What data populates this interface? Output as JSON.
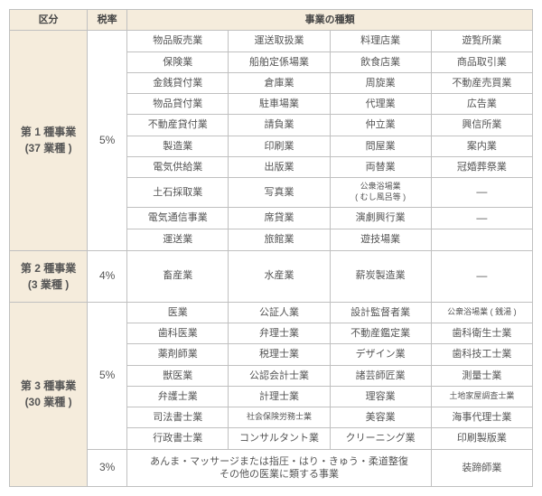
{
  "colors": {
    "header_bg": "#f5ecdc",
    "border": "#c0c0c0",
    "text": "#555555",
    "bg": "#ffffff"
  },
  "headers": {
    "category": "区分",
    "rate": "税率",
    "type": "事業の種類"
  },
  "cat1": {
    "name": "第 1 種事業",
    "count": "(37 業種 )",
    "rate": "5%"
  },
  "cat2": {
    "name": "第 2 種事業",
    "count": "(3 業種 )",
    "rate": "4%"
  },
  "cat3": {
    "name": "第 3 種事業",
    "count": "(30 業種 )",
    "rate_a": "5%",
    "rate_b": "3%"
  },
  "t1": {
    "r0": {
      "c0": "物品販売業",
      "c1": "運送取扱業",
      "c2": "料理店業",
      "c3": "遊覧所業"
    },
    "r1": {
      "c0": "保険業",
      "c1": "船舶定係場業",
      "c2": "飲食店業",
      "c3": "商品取引業"
    },
    "r2": {
      "c0": "金銭貸付業",
      "c1": "倉庫業",
      "c2": "周旋業",
      "c3": "不動産売買業"
    },
    "r3": {
      "c0": "物品貸付業",
      "c1": "駐車場業",
      "c2": "代理業",
      "c3": "広告業"
    },
    "r4": {
      "c0": "不動産貸付業",
      "c1": "請負業",
      "c2": "仲立業",
      "c3": "興信所業"
    },
    "r5": {
      "c0": "製造業",
      "c1": "印刷業",
      "c2": "問屋業",
      "c3": "案内業"
    },
    "r6": {
      "c0": "電気供給業",
      "c1": "出版業",
      "c2": "両替業",
      "c3": "冠婚葬祭業"
    },
    "r7": {
      "c0": "土石採取業",
      "c1": "写真業",
      "c2a": "公衆浴場業",
      "c2b": "( むし風呂等 )",
      "c3": "―"
    },
    "r8": {
      "c0": "電気通信事業",
      "c1": "席貸業",
      "c2": "演劇興行業",
      "c3": "―"
    },
    "r9": {
      "c0": "運送業",
      "c1": "旅館業",
      "c2": "遊技場業"
    }
  },
  "t2": {
    "r0": {
      "c0": "畜産業",
      "c1": "水産業",
      "c2": "薪炭製造業",
      "c3": "―"
    }
  },
  "t3": {
    "r0": {
      "c0": "医業",
      "c1": "公証人業",
      "c2": "設計監督者業",
      "c3": "公衆浴場業 ( 銭湯 )"
    },
    "r1": {
      "c0": "歯科医業",
      "c1": "弁理士業",
      "c2": "不動産鑑定業",
      "c3": "歯科衛生士業"
    },
    "r2": {
      "c0": "薬剤師業",
      "c1": "税理士業",
      "c2": "デザイン業",
      "c3": "歯科技工士業"
    },
    "r3": {
      "c0": "獣医業",
      "c1": "公認会計士業",
      "c2": "諸芸師匠業",
      "c3": "測量士業"
    },
    "r4": {
      "c0": "弁護士業",
      "c1": "計理士業",
      "c2": "理容業",
      "c3": "土地家屋調査士業"
    },
    "r5": {
      "c0": "司法書士業",
      "c1": "社会保険労務士業",
      "c2": "美容業",
      "c3": "海事代理士業"
    },
    "r6": {
      "c0": "行政書士業",
      "c1": "コンサルタント業",
      "c2": "クリーニング業",
      "c3": "印刷製版業"
    },
    "r7": {
      "note": "あんま・マッサージまたは指圧・はり・きゅう・柔道整復\nその他の医業に類する事業",
      "c3": "装蹄師業"
    }
  }
}
